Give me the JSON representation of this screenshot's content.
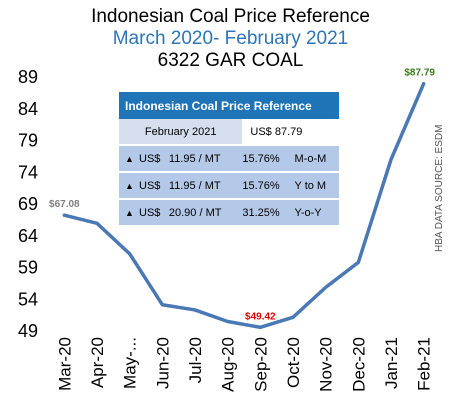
{
  "chart_data": {
    "type": "line",
    "title": "Indonesian Coal Price Reference",
    "subtitle": "March 2020- February 2021",
    "subtitle2": "6322 GAR COAL",
    "categories": [
      "Mar-20",
      "Apr-20",
      "May-...",
      "Jun-20",
      "Jul-20",
      "Aug-20",
      "Sep-20",
      "Oct-20",
      "Nov-20",
      "Dec-20",
      "Jan-21",
      "Feb-21"
    ],
    "series": [
      {
        "values": [
          67.08,
          65.8,
          61.0,
          52.98,
          52.16,
          50.34,
          49.42,
          51.0,
          55.71,
          59.65,
          75.84,
          87.79
        ]
      }
    ],
    "ylim": [
      49,
      89
    ],
    "yticks": [
      49,
      54,
      59,
      64,
      69,
      74,
      79,
      84,
      89
    ],
    "data_labels": [
      {
        "index": 0,
        "text": "$67.08",
        "color": "#7f7f7f"
      },
      {
        "index": 6,
        "text": "$49.42",
        "color": "#e00000"
      },
      {
        "index": 11,
        "text": "$87.79",
        "color": "#3a7d1e"
      }
    ],
    "line_color": "#4a78b5"
  },
  "info_table": {
    "header": "Indonesian Coal Price Reference",
    "month": "February 2021",
    "price": "US$ 87.79",
    "rows": [
      {
        "currency": "US$",
        "amount": "11.95 / MT",
        "pct": "15.76%",
        "label": "M-o-M"
      },
      {
        "currency": "US$",
        "amount": "11.95 / MT",
        "pct": "15.76%",
        "label": "Y to M"
      },
      {
        "currency": "US$",
        "amount": "20.90 / MT",
        "pct": "31.25%",
        "label": "Y-o-Y"
      }
    ]
  },
  "source": "HBA DATA SOURCE: ESDM"
}
